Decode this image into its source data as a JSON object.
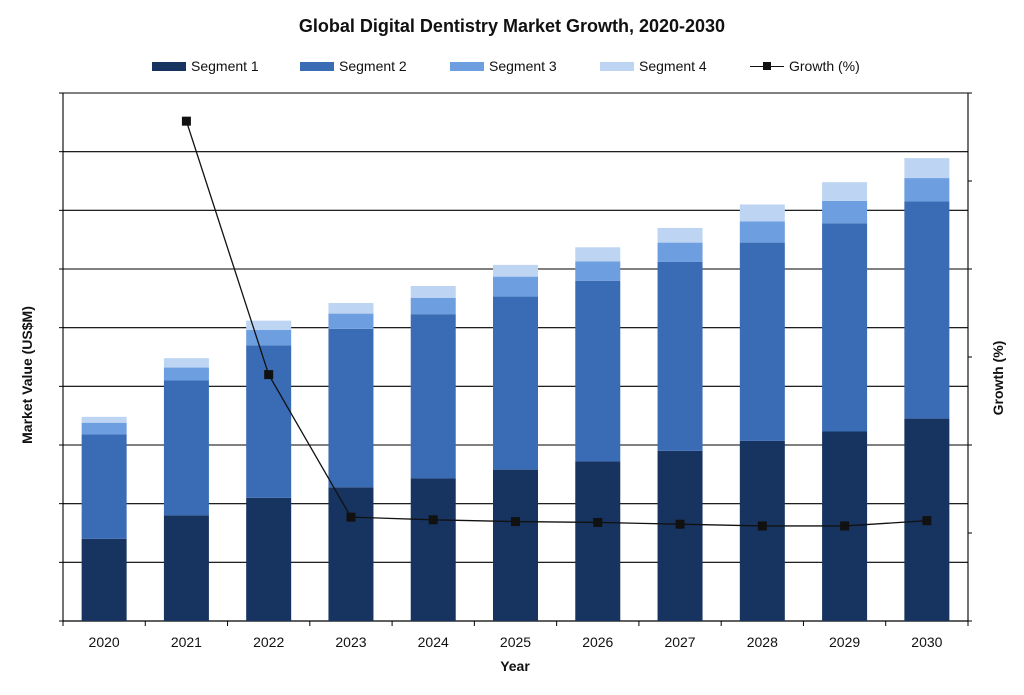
{
  "chart_data": {
    "type": "bar",
    "subtype": "stacked bar with line on secondary axis",
    "title": "Global Digital Dentistry Market Growth, 2020-2030",
    "xlabel": "Year",
    "ylabel": "Market Value (US$M)",
    "y2label": "Growth (%)",
    "categories": [
      "2020",
      "2021",
      "2022",
      "2023",
      "2024",
      "2025",
      "2026",
      "2027",
      "2028",
      "2029",
      "2030"
    ],
    "ylim": [
      0,
      9
    ],
    "y2lim": [
      0,
      6
    ],
    "grid": true,
    "legend": "top",
    "series": [
      {
        "name": "Segment 1",
        "type": "bar",
        "color": "#16345f",
        "values": [
          1.4,
          1.8,
          2.1,
          2.28,
          2.43,
          2.58,
          2.72,
          2.9,
          3.07,
          3.23,
          3.45
        ]
      },
      {
        "name": "Segment 2",
        "type": "bar",
        "color": "#3a6bb5",
        "values": [
          1.78,
          2.3,
          2.6,
          2.7,
          2.8,
          2.95,
          3.08,
          3.22,
          3.38,
          3.55,
          3.7
        ]
      },
      {
        "name": "Segment 3",
        "type": "bar",
        "color": "#6d9ee0",
        "values": [
          0.2,
          0.22,
          0.26,
          0.26,
          0.28,
          0.34,
          0.33,
          0.33,
          0.36,
          0.38,
          0.4
        ]
      },
      {
        "name": "Segment 4",
        "type": "bar",
        "color": "#bdd4f2",
        "values": [
          0.1,
          0.16,
          0.16,
          0.18,
          0.2,
          0.2,
          0.24,
          0.25,
          0.29,
          0.32,
          0.34
        ]
      },
      {
        "name": "Growth (%)",
        "type": "line",
        "axis": "right",
        "color": "#111111",
        "values": [
          null,
          5.68,
          2.8,
          1.18,
          1.15,
          1.13,
          1.12,
          1.1,
          1.08,
          1.08,
          1.14
        ]
      }
    ]
  }
}
